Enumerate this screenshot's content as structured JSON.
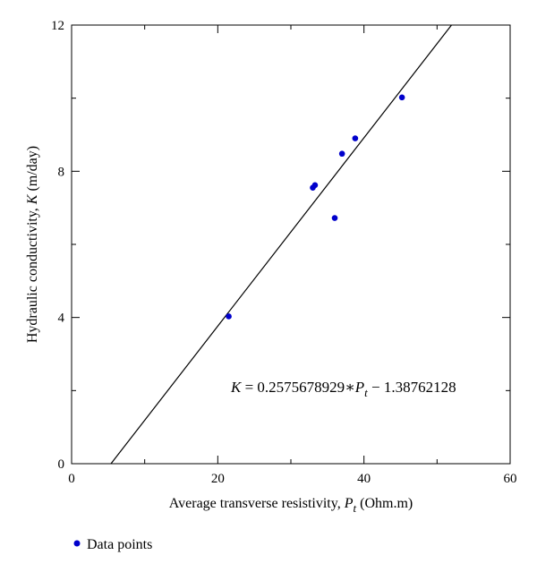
{
  "chart_data": {
    "type": "scatter",
    "xlim": [
      0,
      60
    ],
    "ylim": [
      0,
      12
    ],
    "xticks": [
      0,
      20,
      40,
      60
    ],
    "yticks": [
      0,
      4,
      8,
      12
    ],
    "xlabel": {
      "prefix": "Average transverse resistivity, ",
      "symbol": "P",
      "subscript": "t",
      "suffix": " (Ohm.m)"
    },
    "ylabel": {
      "prefix": "Hydraulic conductivity, ",
      "symbol": "K",
      "suffix": " (m/day)"
    },
    "series": [
      {
        "name": "Data points",
        "color": "#0000cc",
        "points": [
          {
            "x": 21.5,
            "y": 4.03
          },
          {
            "x": 33.0,
            "y": 7.55
          },
          {
            "x": 33.3,
            "y": 7.62
          },
          {
            "x": 36.0,
            "y": 6.72
          },
          {
            "x": 37.0,
            "y": 8.48
          },
          {
            "x": 38.8,
            "y": 8.9
          },
          {
            "x": 45.2,
            "y": 10.02
          }
        ]
      }
    ],
    "fit": {
      "slope": 0.2575678929,
      "intercept": -1.38762128,
      "equation": {
        "lhs": "K",
        "middle": " = 0.2575678929",
        "op": "∗",
        "symbol": "P",
        "subscript": "t",
        "tail": " − 1.38762128"
      }
    },
    "legend": {
      "label": "Data points",
      "position": "bottom-left"
    }
  }
}
